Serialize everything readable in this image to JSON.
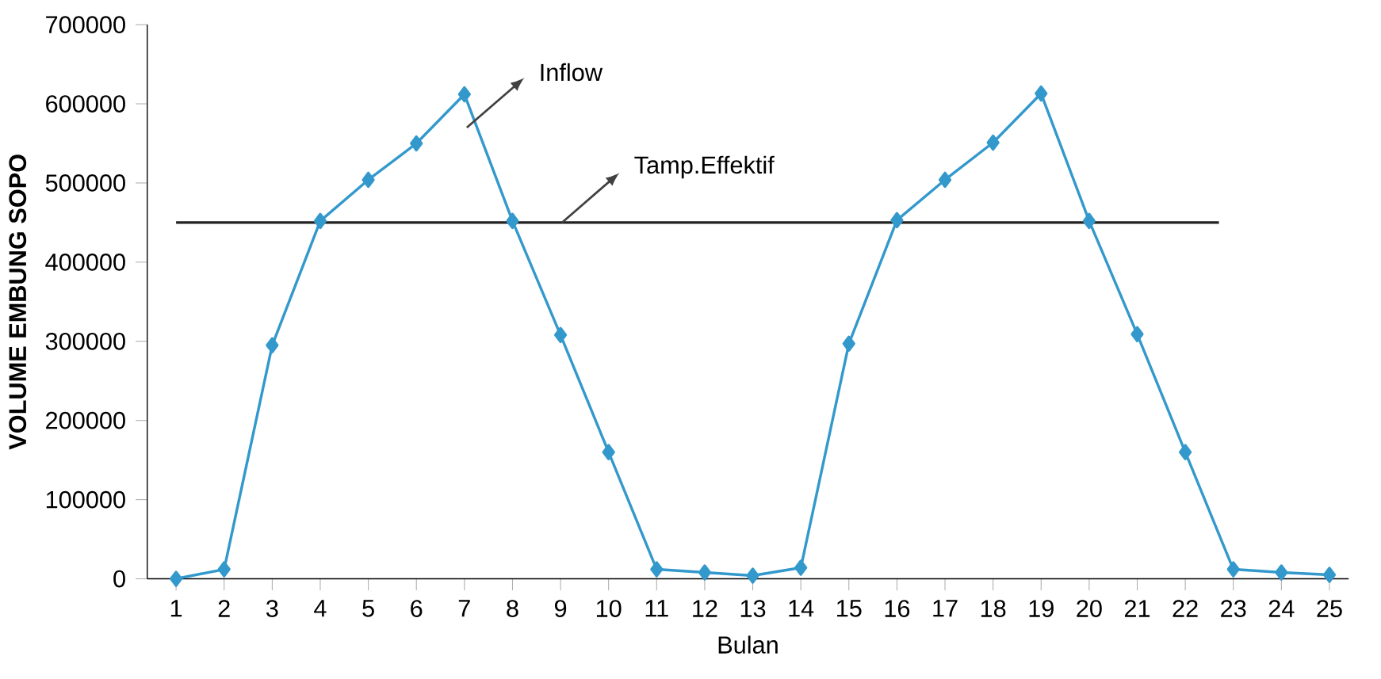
{
  "chart_data": {
    "type": "line",
    "xlabel": "Bulan",
    "ylabel": "VOLUME EMBUNG SOPO",
    "x": [
      1,
      2,
      3,
      4,
      5,
      6,
      7,
      8,
      9,
      10,
      11,
      12,
      13,
      14,
      15,
      16,
      17,
      18,
      19,
      20,
      21,
      22,
      23,
      24,
      25
    ],
    "series": [
      {
        "name": "Inflow",
        "color": "#3399cc",
        "marker": "diamond",
        "values": [
          0,
          12000,
          295000,
          452000,
          504000,
          550000,
          612000,
          452000,
          308000,
          160000,
          12000,
          8000,
          4000,
          14000,
          297000,
          453000,
          504000,
          551000,
          613000,
          452000,
          309000,
          160000,
          12000,
          8000,
          5000
        ]
      },
      {
        "name": "Tamp.Effektif",
        "color": "#222222",
        "marker": "none",
        "x": [
          1,
          22.7
        ],
        "values": [
          450000,
          450000
        ]
      }
    ],
    "xlim": [
      0.4,
      25.4
    ],
    "ylim": [
      0,
      700000
    ],
    "xticks": [
      1,
      2,
      3,
      4,
      5,
      6,
      7,
      8,
      9,
      10,
      11,
      12,
      13,
      14,
      15,
      16,
      17,
      18,
      19,
      20,
      21,
      22,
      23,
      24,
      25
    ],
    "yticks": [
      0,
      100000,
      200000,
      300000,
      400000,
      500000,
      600000,
      700000
    ],
    "grid": false,
    "line_style": "solid"
  }
}
